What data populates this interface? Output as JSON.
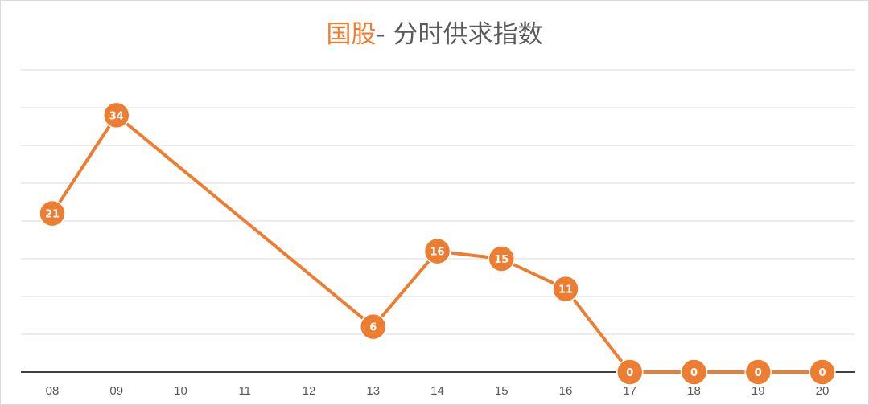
{
  "title": {
    "highlight": "国股",
    "rest": "- 分时供求指数"
  },
  "colors": {
    "series": "#ed7d31",
    "grid": "#d9d9d9",
    "axis": "#404040",
    "text": "#595959"
  },
  "chart_data": {
    "type": "line",
    "title": "国股- 分时供求指数",
    "categories": [
      "08",
      "09",
      "10",
      "11",
      "12",
      "13",
      "14",
      "15",
      "16",
      "17",
      "18",
      "19",
      "20"
    ],
    "series": [
      {
        "values": [
          21,
          34,
          null,
          null,
          null,
          6,
          16,
          15,
          11,
          0,
          0,
          0,
          0
        ],
        "labels": [
          "21",
          "34",
          "",
          "",
          "",
          "6",
          "16",
          "15",
          "11",
          "0",
          "0",
          "0",
          "0"
        ]
      }
    ],
    "ylim": [
      0,
      40
    ],
    "grid": true,
    "data_labels": true,
    "legend": "none"
  }
}
